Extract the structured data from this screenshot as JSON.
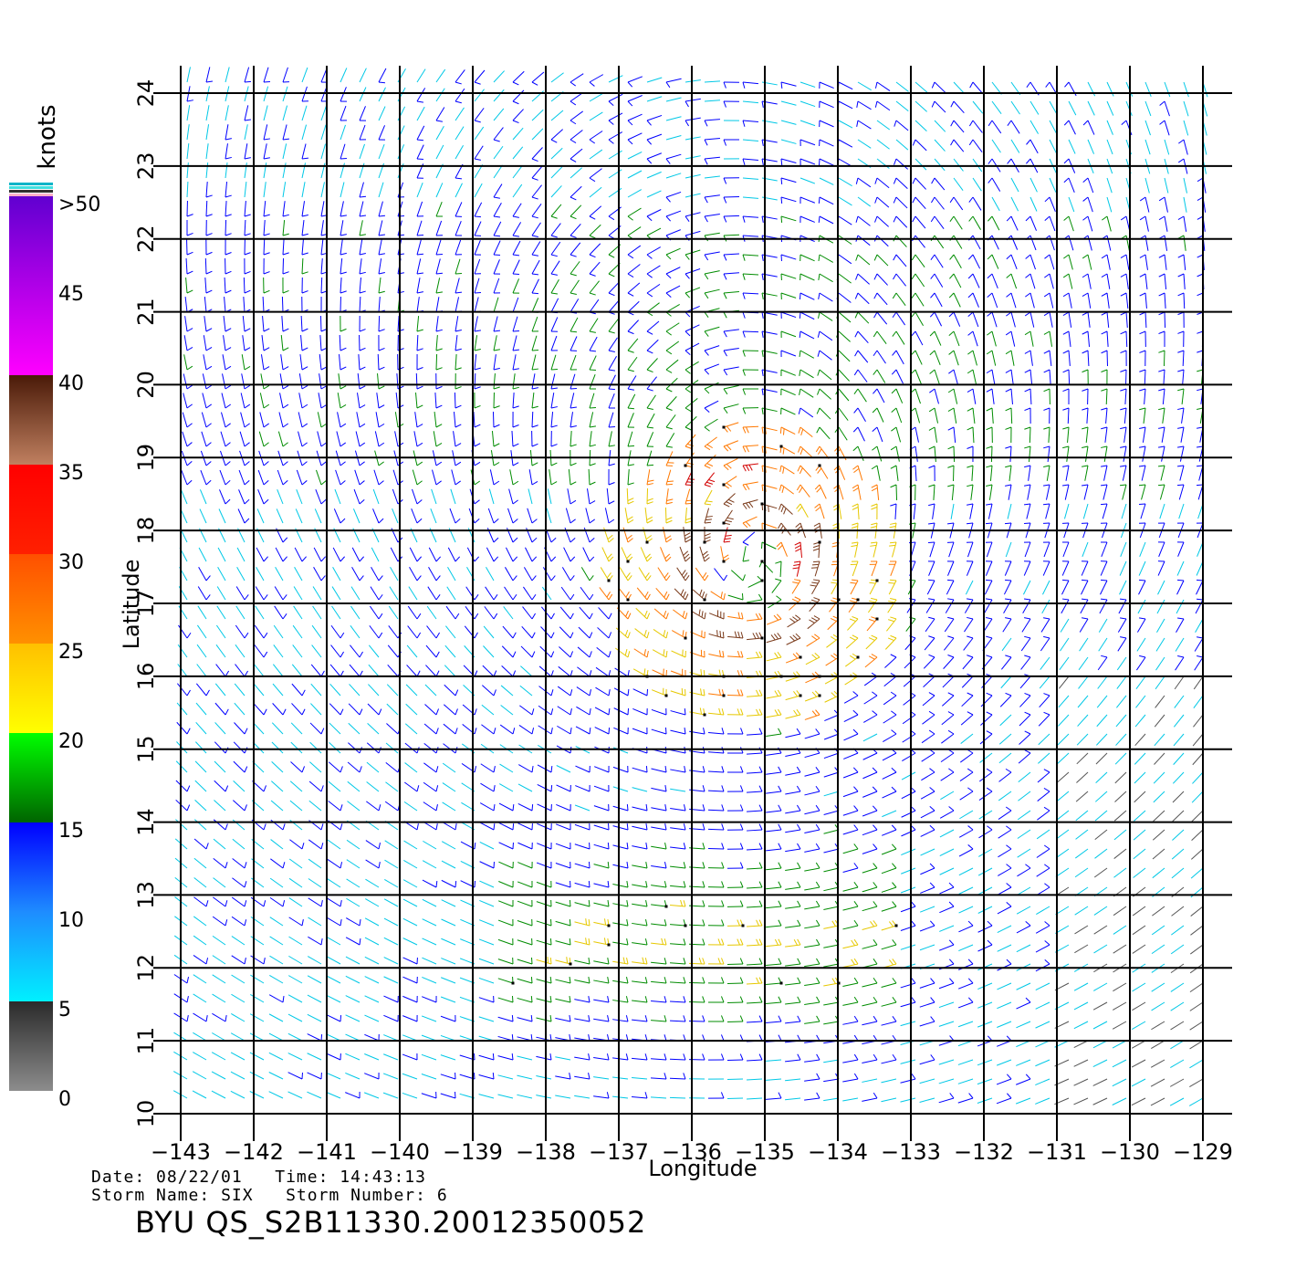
{
  "chart_data": {
    "type": "wind-barb-map",
    "xlabel": "Longitude",
    "ylabel": "Latitude",
    "xlim": [
      -143,
      -128.6
    ],
    "ylim": [
      10,
      24.2
    ],
    "x_ticks": [
      "-143",
      "-142",
      "-141",
      "-140",
      "-139",
      "-138",
      "-137",
      "-136",
      "-135",
      "-134",
      "-133",
      "-132",
      "-131",
      "-130",
      "-129"
    ],
    "x_tick_values": [
      -143,
      -142,
      -141,
      -140,
      -139,
      -138,
      -137,
      -136,
      -135,
      -134,
      -133,
      -132,
      -131,
      -130,
      -129
    ],
    "y_ticks": [
      "10",
      "11",
      "12",
      "13",
      "14",
      "15",
      "16",
      "17",
      "18",
      "19",
      "20",
      "21",
      "22",
      "23",
      "24"
    ],
    "y_tick_values": [
      10,
      11,
      12,
      13,
      14,
      15,
      16,
      17,
      18,
      19,
      20,
      21,
      22,
      23,
      24
    ],
    "grid": true,
    "storm_center": {
      "lon": -135.1,
      "lat": 17.4
    },
    "colorbar": {
      "unit": "knots",
      "labels": [
        ">50",
        "45",
        "40",
        "35",
        "30",
        "25",
        "20",
        "15",
        "10",
        "5",
        "0"
      ],
      "label_values": [
        50,
        45,
        40,
        35,
        30,
        25,
        20,
        15,
        10,
        5,
        0
      ],
      "stops": [
        {
          "from": 0,
          "to": 5,
          "color_top": "#2a2a2a",
          "color_bottom": "#8c8c8c"
        },
        {
          "from": 5,
          "to": 10,
          "color_top": "#1e8cff",
          "color_bottom": "#00f0ff"
        },
        {
          "from": 10,
          "to": 15,
          "color_top": "#0000ff",
          "color_bottom": "#1e8cff"
        },
        {
          "from": 15,
          "to": 20,
          "color_top": "#00ff00",
          "color_bottom": "#006400"
        },
        {
          "from": 20,
          "to": 25,
          "color_top": "#ffc000",
          "color_bottom": "#ffff00"
        },
        {
          "from": 25,
          "to": 30,
          "color_top": "#ff5000",
          "color_bottom": "#ff9000"
        },
        {
          "from": 30,
          "to": 35,
          "color_top": "#ff0000",
          "color_bottom": "#ff2000"
        },
        {
          "from": 35,
          "to": 40,
          "color_top": "#4a1a08",
          "color_bottom": "#c08060"
        },
        {
          "from": 40,
          "to": 50,
          "color_top": "#6000d0",
          "color_bottom": "#ff00ff"
        }
      ]
    },
    "speed_colors": {
      "0-5": "#555555",
      "5-10": "#00c8e6",
      "10-15": "#0000ff",
      "15-20": "#008c00",
      "20-25": "#e6c800",
      "25-30": "#ff7800",
      "30-35": "#d20000",
      "35-40": "#7a3a1a",
      "40-50": "#9900cc"
    }
  },
  "info": {
    "date_label": "Date:",
    "date": "08/22/01",
    "time_label": "Time:",
    "time": "14:43:13",
    "storm_name_label": "Storm Name:",
    "storm_name": "SIX",
    "storm_number_label": "Storm Number:",
    "storm_number": "6",
    "file_id": "BYU  QS_S2B11330.20012350052"
  }
}
